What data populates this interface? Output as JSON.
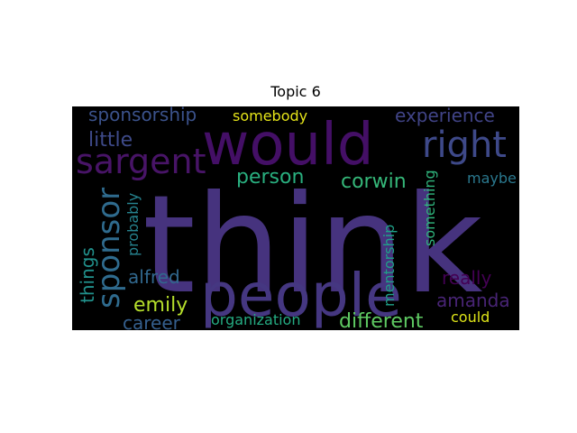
{
  "chart_data": {
    "type": "wordcloud",
    "title": "Topic 6",
    "background": "#000000",
    "words": [
      {
        "text": "think",
        "color": "#46337e"
      },
      {
        "text": "would",
        "color": "#440f66"
      },
      {
        "text": "people",
        "color": "#453781"
      },
      {
        "text": "sargent",
        "color": "#481467"
      },
      {
        "text": "right",
        "color": "#3e4989"
      },
      {
        "text": "sponsor",
        "color": "#2f6b8e"
      },
      {
        "text": "sponsorship",
        "color": "#3b528b"
      },
      {
        "text": "somebody",
        "color": "#e5e419"
      },
      {
        "text": "experience",
        "color": "#414487"
      },
      {
        "text": "little",
        "color": "#3e4a89"
      },
      {
        "text": "person",
        "color": "#29af7f"
      },
      {
        "text": "corwin",
        "color": "#35b779"
      },
      {
        "text": "maybe",
        "color": "#2a788e"
      },
      {
        "text": "something",
        "color": "#2fb47c"
      },
      {
        "text": "probably",
        "color": "#26828e"
      },
      {
        "text": "mentorship",
        "color": "#1fa088"
      },
      {
        "text": "things",
        "color": "#21918c"
      },
      {
        "text": "alfred",
        "color": "#31688e"
      },
      {
        "text": "really",
        "color": "#440154"
      },
      {
        "text": "emily",
        "color": "#b5de2b"
      },
      {
        "text": "amanda",
        "color": "#482475"
      },
      {
        "text": "career",
        "color": "#355f8d"
      },
      {
        "text": "organization",
        "color": "#25ab82"
      },
      {
        "text": "different",
        "color": "#5ec962"
      },
      {
        "text": "could",
        "color": "#dde318"
      }
    ]
  }
}
